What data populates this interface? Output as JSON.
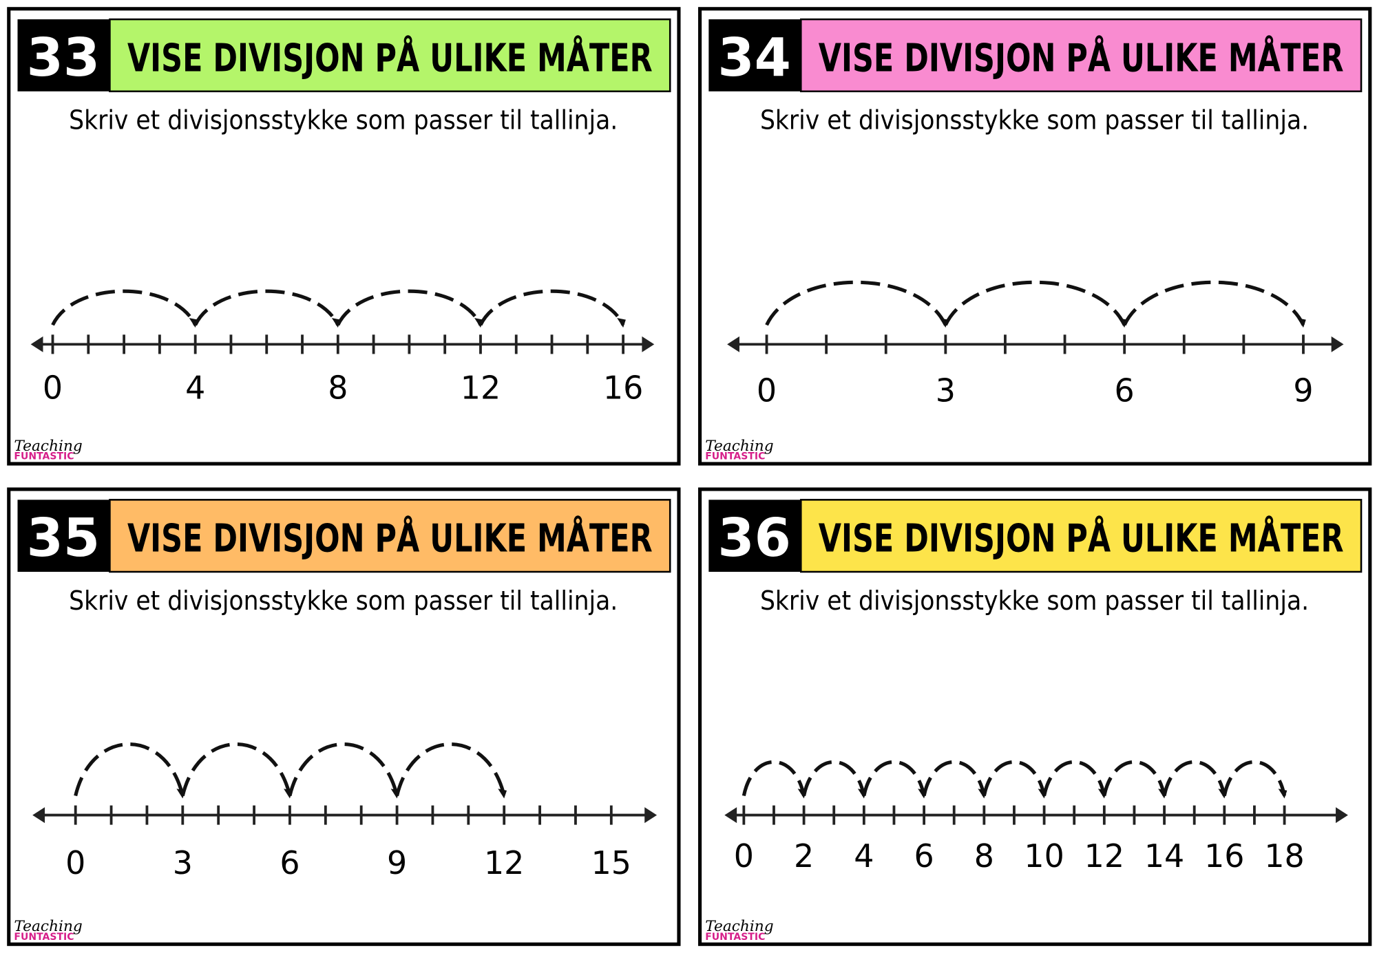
{
  "cards": [
    {
      "number": 33,
      "title": "VISE DIVISJON PÅ ULIKE MÅTER",
      "color": "#b4f56a",
      "instruction": "Skriv et divisjonsstykke som passer til tallinja.",
      "number_line": {
        "labels": [
          0,
          4,
          8,
          12,
          16
        ]
      },
      "logo": {
        "line1": "Teaching",
        "line2": "FUNTASTIC"
      }
    },
    {
      "number": 34,
      "title": "VISE DIVISJON PÅ ULIKE MÅTER",
      "color": "#f98bd0",
      "instruction": "Skriv et divisjonsstykke som passer til tallinja.",
      "number_line": {
        "labels": [
          0,
          3,
          6,
          9
        ]
      },
      "logo": {
        "line1": "Teaching",
        "line2": "FUNTASTIC"
      }
    },
    {
      "number": 35,
      "title": "VISE DIVISJON PÅ ULIKE MÅTER",
      "color": "#ffbb66",
      "instruction": "Skriv et divisjonsstykke som passer til tallinja.",
      "number_line": {
        "labels": [
          0,
          3,
          6,
          9,
          12,
          15
        ]
      },
      "logo": {
        "line1": "Teaching",
        "line2": "FUNTASTIC"
      }
    },
    {
      "number": 36,
      "title": "VISE DIVISJON PÅ ULIKE MÅTER",
      "color": "#fde44a",
      "instruction": "Skriv et divisjonsstykke som passer til tallinja.",
      "number_line": {
        "labels": [
          0,
          2,
          4,
          6,
          8,
          10,
          12,
          14,
          16,
          18
        ]
      },
      "logo": {
        "line1": "Teaching",
        "line2": "FUNTASTIC"
      }
    }
  ]
}
